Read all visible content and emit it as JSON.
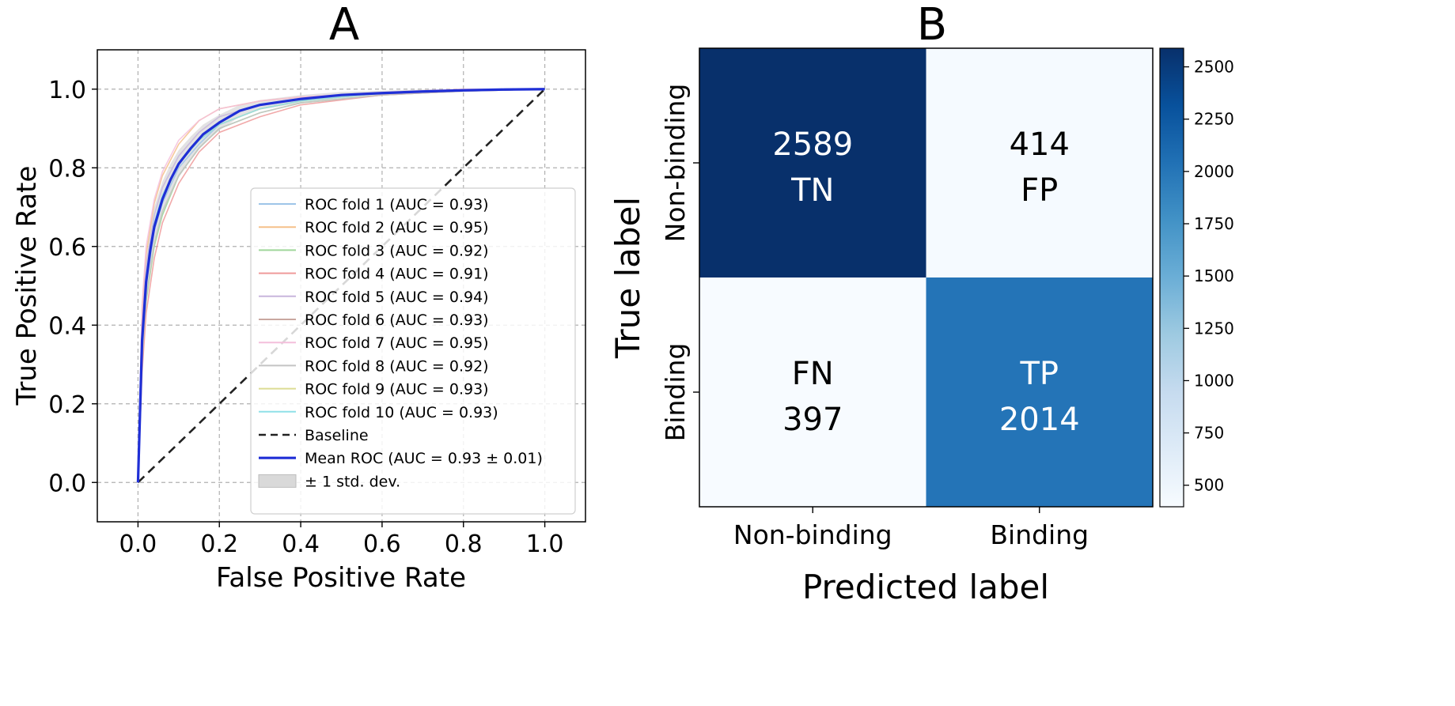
{
  "panel_a": {
    "letter": "A",
    "chart_data": {
      "type": "line",
      "xlabel": "False Positive Rate",
      "ylabel": "True Positive Rate",
      "xlim": [
        -0.1,
        1.1
      ],
      "ylim": [
        -0.1,
        1.1
      ],
      "xticks": [
        "0.0",
        "0.2",
        "0.4",
        "0.6",
        "0.8",
        "1.0"
      ],
      "yticks": [
        "0.0",
        "0.2",
        "0.4",
        "0.6",
        "0.8",
        "1.0"
      ],
      "grid": true,
      "legend_position": "lower-right",
      "fold_fpr": [
        0,
        0.01,
        0.02,
        0.04,
        0.06,
        0.1,
        0.15,
        0.2,
        0.3,
        0.4,
        0.6,
        0.8,
        1.0
      ],
      "series": [
        {
          "name": "ROC fold 1 (AUC = 0.93)",
          "color": "#9ec5e8",
          "tpr": [
            0,
            0.34,
            0.5,
            0.64,
            0.71,
            0.8,
            0.86,
            0.91,
            0.95,
            0.97,
            0.99,
            0.995,
            1.0
          ]
        },
        {
          "name": "ROC fold 2 (AUC = 0.95)",
          "color": "#f5c08a",
          "tpr": [
            0,
            0.44,
            0.58,
            0.71,
            0.78,
            0.86,
            0.92,
            0.95,
            0.97,
            0.98,
            0.99,
            1.0,
            1.0
          ]
        },
        {
          "name": "ROC fold 3 (AUC = 0.92)",
          "color": "#9fd69a",
          "tpr": [
            0,
            0.3,
            0.46,
            0.6,
            0.68,
            0.78,
            0.85,
            0.9,
            0.94,
            0.965,
            0.985,
            0.995,
            1.0
          ]
        },
        {
          "name": "ROC fold 4 (AUC = 0.91)",
          "color": "#ef9a9a",
          "tpr": [
            0,
            0.28,
            0.43,
            0.57,
            0.66,
            0.76,
            0.84,
            0.89,
            0.93,
            0.96,
            0.985,
            0.995,
            1.0
          ]
        },
        {
          "name": "ROC fold 5 (AUC = 0.94)",
          "color": "#c8b6dc",
          "tpr": [
            0,
            0.4,
            0.55,
            0.68,
            0.75,
            0.83,
            0.89,
            0.93,
            0.96,
            0.975,
            0.99,
            0.997,
            1.0
          ]
        },
        {
          "name": "ROC fold 6 (AUC = 0.93)",
          "color": "#c9a7a0",
          "tpr": [
            0,
            0.35,
            0.51,
            0.65,
            0.72,
            0.81,
            0.87,
            0.91,
            0.95,
            0.97,
            0.99,
            0.996,
            1.0
          ]
        },
        {
          "name": "ROC fold 7 (AUC = 0.95)",
          "color": "#f4bfdc",
          "tpr": [
            0,
            0.45,
            0.6,
            0.72,
            0.79,
            0.87,
            0.92,
            0.95,
            0.97,
            0.98,
            0.992,
            1.0,
            1.0
          ]
        },
        {
          "name": "ROC fold 8 (AUC = 0.92)",
          "color": "#c4c4c4",
          "tpr": [
            0,
            0.31,
            0.47,
            0.61,
            0.69,
            0.78,
            0.85,
            0.9,
            0.94,
            0.965,
            0.985,
            0.995,
            1.0
          ]
        },
        {
          "name": "ROC fold 9 (AUC = 0.93)",
          "color": "#dcdc94",
          "tpr": [
            0,
            0.36,
            0.52,
            0.65,
            0.72,
            0.81,
            0.87,
            0.91,
            0.95,
            0.97,
            0.99,
            0.996,
            1.0
          ]
        },
        {
          "name": "ROC fold 10 (AUC = 0.93)",
          "color": "#8fe0e8",
          "tpr": [
            0,
            0.37,
            0.52,
            0.66,
            0.73,
            0.81,
            0.87,
            0.91,
            0.95,
            0.97,
            0.99,
            0.996,
            1.0
          ]
        }
      ],
      "baseline": {
        "name": "Baseline",
        "x": [
          0,
          1
        ],
        "y": [
          0,
          1
        ],
        "color": "#222222"
      },
      "mean": {
        "name": "Mean ROC (AUC = 0.93 ± 0.01)",
        "color": "#1f2fd6",
        "x": [
          0,
          0.01,
          0.02,
          0.03,
          0.04,
          0.06,
          0.08,
          0.1,
          0.13,
          0.16,
          0.2,
          0.25,
          0.3,
          0.4,
          0.5,
          0.6,
          0.7,
          0.8,
          0.9,
          1.0
        ],
        "y": [
          0,
          0.36,
          0.51,
          0.59,
          0.65,
          0.72,
          0.77,
          0.81,
          0.85,
          0.885,
          0.915,
          0.945,
          0.96,
          0.975,
          0.985,
          0.99,
          0.994,
          0.997,
          0.999,
          1.0
        ]
      },
      "std_band": {
        "name": "± 1 std. dev.",
        "color": "#d9d9d9",
        "halfwidth": [
          0,
          0.06,
          0.06,
          0.055,
          0.05,
          0.045,
          0.04,
          0.035,
          0.03,
          0.025,
          0.02,
          0.015,
          0.012,
          0.01,
          0.008,
          0.006,
          0.005,
          0.004,
          0.002,
          0
        ]
      }
    }
  },
  "panel_b": {
    "letter": "B",
    "chart_data": {
      "type": "heatmap",
      "xlabel": "Predicted label",
      "ylabel": "True label",
      "x_categories": [
        "Non-binding",
        "Binding"
      ],
      "y_categories": [
        "Non-binding",
        "Binding"
      ],
      "cells": [
        [
          {
            "value": 2589,
            "value_text": "2589",
            "tag": "TN"
          },
          {
            "value": 414,
            "value_text": "414",
            "tag": "FP"
          }
        ],
        [
          {
            "value": 397,
            "value_text": "397",
            "tag": "FN"
          },
          {
            "value": 2014,
            "value_text": "2014",
            "tag": "TP"
          }
        ]
      ],
      "colormap": "Blues",
      "vmin": 397,
      "vmax": 2589,
      "colorbar_ticks": [
        "2500",
        "2250",
        "2000",
        "1750",
        "1500",
        "1250",
        "1000",
        "750",
        "500"
      ],
      "colorbar_tick_values": [
        2500,
        2250,
        2000,
        1750,
        1500,
        1250,
        1000,
        750,
        500
      ]
    }
  }
}
